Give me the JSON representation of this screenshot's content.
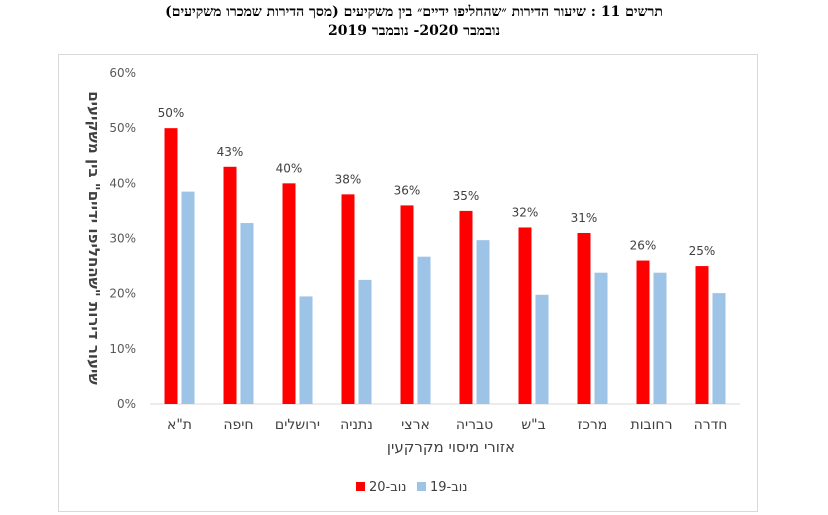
{
  "title": {
    "line1": "תרשים 11 :  שיעור הדירות ״שהחליפו ידיים״ בין משקיעים (מסך הדירות שמכרו משקיעים)",
    "line2": "נובמבר 2020- נובמבר 2019"
  },
  "chart_data": {
    "type": "bar",
    "xlabel": "אזורי מיסוי מקרקעין",
    "ylabel": "שיעור דירות \"שהחליפו ידיים\" בין משקיעים",
    "ylim": [
      0,
      60
    ],
    "yticks": [
      "0%",
      "10%",
      "20%",
      "30%",
      "40%",
      "50%",
      "60%"
    ],
    "categories": [
      "ת\"א",
      "חיפה",
      "ירושלים",
      "נתניה",
      "ארצי",
      "טבריה",
      "ב\"ש",
      "מרכז",
      "רחובות",
      "חדרה"
    ],
    "series": [
      {
        "name": "נוב-20",
        "color": "#ff0000",
        "values": [
          50,
          43,
          40,
          38,
          36,
          35,
          32,
          31,
          26,
          25
        ],
        "labels": [
          "50%",
          "43%",
          "40%",
          "38%",
          "36%",
          "35%",
          "32%",
          "31%",
          "26%",
          "25%"
        ]
      },
      {
        "name": "נוב-19",
        "color": "#9dc3e6",
        "values": [
          38.5,
          32.8,
          19.5,
          22.5,
          26.7,
          29.7,
          19.8,
          23.8,
          23.8,
          20.1
        ]
      }
    ],
    "grid": false,
    "legend_position": "bottom"
  }
}
